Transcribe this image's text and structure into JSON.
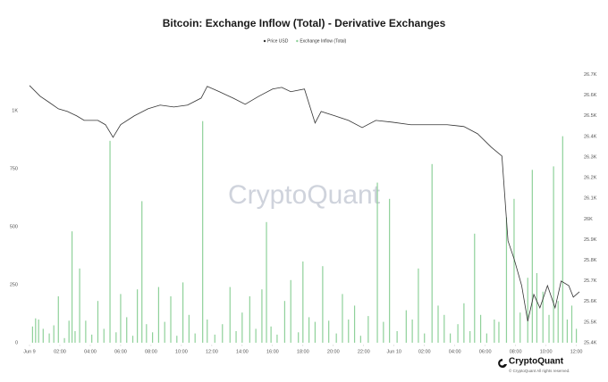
{
  "chart_data": {
    "type": "combo",
    "title": "Bitcoin: Exchange Inflow (Total) - Derivative Exchanges",
    "watermark": "CryptoQuant",
    "footer": {
      "brand": "CryptoQuant",
      "copyright": "© CryptoQuant All rights reserved."
    },
    "grid": false,
    "legend": "top",
    "xlim": [
      0,
      36.2
    ],
    "xticks": [
      {
        "value": 0,
        "label": "Jun 9"
      },
      {
        "value": 2,
        "label": "02:00"
      },
      {
        "value": 4,
        "label": "04:00"
      },
      {
        "value": 6,
        "label": "06:00"
      },
      {
        "value": 8,
        "label": "08:00"
      },
      {
        "value": 10,
        "label": "10:00"
      },
      {
        "value": 12,
        "label": "12:00"
      },
      {
        "value": 14,
        "label": "14:00"
      },
      {
        "value": 16,
        "label": "16:00"
      },
      {
        "value": 18,
        "label": "18:00"
      },
      {
        "value": 20,
        "label": "20:00"
      },
      {
        "value": 22,
        "label": "22:00"
      },
      {
        "value": 24,
        "label": "Jun 10"
      },
      {
        "value": 26,
        "label": "02:00"
      },
      {
        "value": 28,
        "label": "04:00"
      },
      {
        "value": 30,
        "label": "06:00"
      },
      {
        "value": 32,
        "label": "08:00"
      },
      {
        "value": 34,
        "label": "10:00"
      },
      {
        "value": 36,
        "label": "12:00"
      }
    ],
    "ylim": [
      0,
      1200
    ],
    "yticks": [
      0,
      250,
      500,
      750,
      {
        "value": 1000,
        "label": "1K"
      }
    ],
    "y2lim": [
      25400,
      26750
    ],
    "y2ticks": [
      {
        "value": 25400,
        "label": "25.4K"
      },
      {
        "value": 25500,
        "label": "25.5K"
      },
      {
        "value": 25600,
        "label": "25.6K"
      },
      {
        "value": 25700,
        "label": "25.7K"
      },
      {
        "value": 25800,
        "label": "25.8K"
      },
      {
        "value": 25900,
        "label": "25.9K"
      },
      {
        "value": 26000,
        "label": "26K"
      },
      {
        "value": 26100,
        "label": "26.1K"
      },
      {
        "value": 26200,
        "label": "26.2K"
      },
      {
        "value": 26300,
        "label": "26.3K"
      },
      {
        "value": 26400,
        "label": "26.4K"
      },
      {
        "value": 26500,
        "label": "26.5K"
      },
      {
        "value": 26600,
        "label": "26.6K"
      },
      {
        "value": 26700,
        "label": "26.7K"
      }
    ],
    "series": [
      {
        "name": "Price USD",
        "type": "line",
        "axis": "y2",
        "color": "#333333",
        "x": [
          0,
          0.7,
          1.3,
          1.9,
          2.5,
          3.1,
          3.6,
          4.5,
          5.0,
          5.5,
          6.0,
          6.9,
          7.8,
          8.6,
          9.5,
          10.4,
          11.3,
          11.7,
          12.5,
          13.4,
          14.2,
          15.1,
          16.0,
          16.6,
          17.2,
          18.1,
          18.8,
          19.2,
          20.1,
          21.0,
          21.9,
          22.8,
          23.9,
          25.1,
          26.3,
          27.5,
          28.6,
          29.5,
          30.4,
          31.1,
          31.5,
          31.9,
          32.4,
          32.8,
          33.2,
          33.6,
          34.1,
          34.6,
          35.0,
          35.5,
          35.8,
          36.2
        ],
        "values": [
          26647,
          26595,
          26565,
          26534,
          26521,
          26500,
          26478,
          26478,
          26457,
          26396,
          26457,
          26500,
          26534,
          26552,
          26543,
          26552,
          26586,
          26643,
          26617,
          26586,
          26556,
          26595,
          26630,
          26638,
          26617,
          26630,
          26465,
          26521,
          26500,
          26478,
          26443,
          26478,
          26469,
          26457,
          26457,
          26457,
          26448,
          26413,
          26348,
          26305,
          25894,
          25807,
          25677,
          25504,
          25634,
          25569,
          25677,
          25569,
          25699,
          25677,
          25621,
          25647
        ]
      },
      {
        "name": "Exchange Inflow (Total)",
        "type": "bar",
        "axis": "y",
        "color": "#8fd19a",
        "x": [
          0.2,
          0.4,
          0.6,
          0.9,
          1.3,
          1.6,
          1.9,
          2.3,
          2.6,
          2.8,
          3.0,
          3.3,
          3.7,
          4.1,
          4.5,
          4.9,
          5.3,
          5.7,
          6.0,
          6.4,
          6.8,
          7.1,
          7.4,
          7.7,
          8.1,
          8.5,
          8.9,
          9.3,
          9.7,
          10.1,
          10.5,
          10.9,
          11.4,
          11.7,
          12.2,
          12.7,
          13.2,
          13.6,
          14.0,
          14.5,
          14.9,
          15.3,
          15.6,
          15.9,
          16.3,
          16.8,
          17.2,
          17.7,
          18.0,
          18.4,
          18.8,
          19.3,
          19.7,
          20.2,
          20.6,
          21.0,
          21.4,
          21.8,
          22.3,
          22.9,
          23.3,
          23.7,
          24.2,
          24.8,
          25.2,
          25.6,
          26.0,
          26.5,
          26.9,
          27.3,
          27.7,
          28.2,
          28.6,
          29.0,
          29.3,
          29.7,
          30.1,
          30.6,
          30.9,
          31.4,
          31.9,
          32.3,
          32.8,
          33.1,
          33.4,
          33.8,
          34.2,
          34.5,
          34.8,
          35.1,
          35.4,
          35.7,
          36.0
        ],
        "values": [
          70,
          105,
          100,
          60,
          40,
          75,
          200,
          20,
          95,
          480,
          50,
          320,
          95,
          35,
          180,
          60,
          870,
          45,
          210,
          110,
          30,
          230,
          610,
          80,
          45,
          240,
          90,
          200,
          30,
          260,
          120,
          40,
          955,
          100,
          35,
          80,
          240,
          50,
          130,
          200,
          60,
          230,
          520,
          70,
          35,
          180,
          270,
          45,
          350,
          110,
          90,
          330,
          95,
          40,
          210,
          100,
          160,
          30,
          115,
          690,
          90,
          620,
          50,
          140,
          100,
          320,
          40,
          770,
          160,
          120,
          40,
          80,
          170,
          50,
          470,
          120,
          40,
          100,
          90,
          540,
          620,
          130,
          280,
          745,
          300,
          220,
          120,
          760,
          180,
          890,
          100,
          160,
          60
        ]
      }
    ]
  }
}
